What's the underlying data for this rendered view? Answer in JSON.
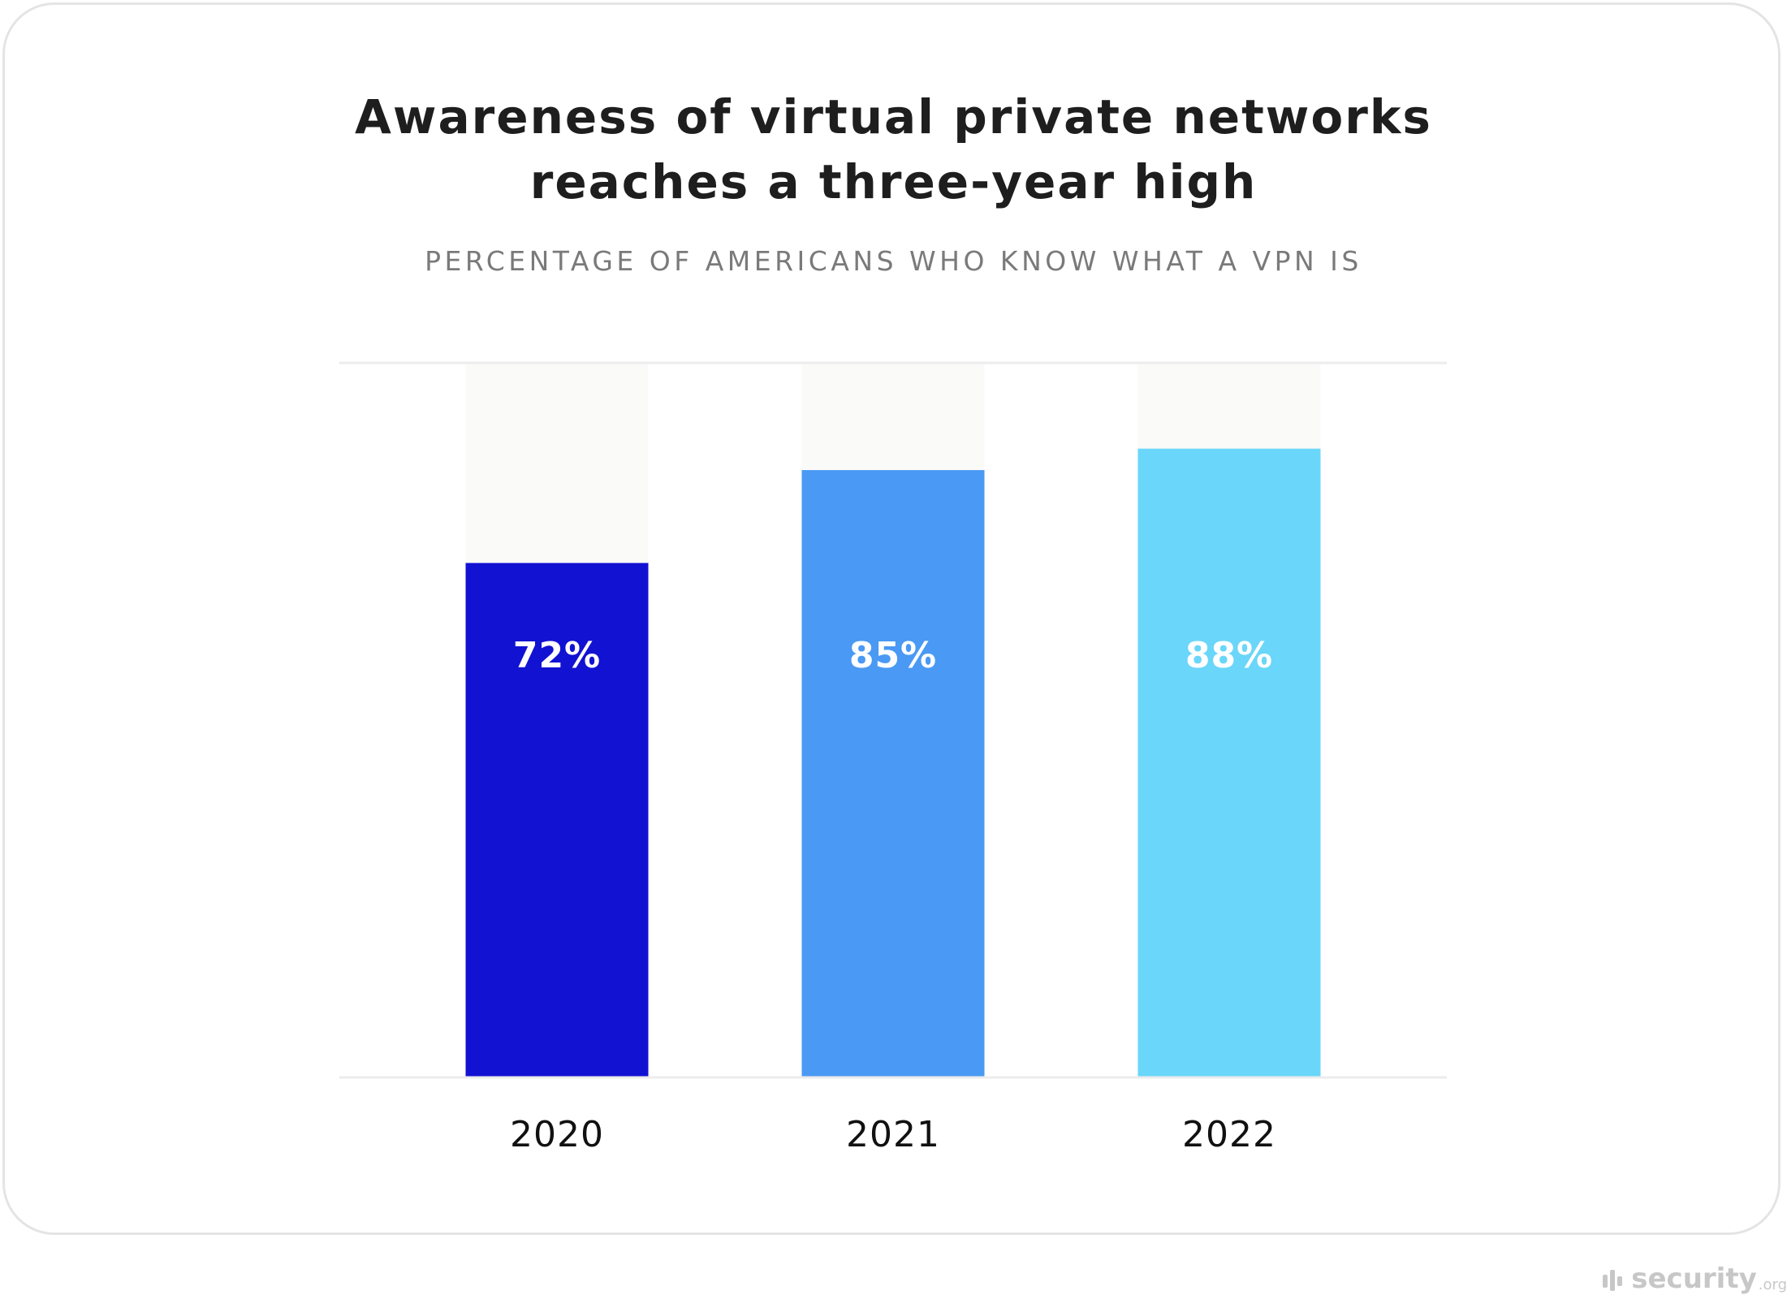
{
  "chart_data": {
    "type": "bar",
    "title_lines": [
      "Awareness of virtual private networks",
      "reaches a three-year high"
    ],
    "subtitle": "PERCENTAGE OF AMERICANS WHO KNOW WHAT A VPN IS",
    "categories": [
      "2020",
      "2021",
      "2022"
    ],
    "values": [
      72,
      85,
      88
    ],
    "data_labels": [
      "72%",
      "85%",
      "88%"
    ],
    "ylim": [
      0,
      100
    ],
    "colors": [
      "#1212d3",
      "#4a99f4",
      "#6ad6f9"
    ],
    "track_color": "#fafaf8",
    "grid": false,
    "legend": "none"
  },
  "watermark": {
    "text": "security",
    "suffix": ".org",
    "icon": "security-org-logo-icon"
  }
}
